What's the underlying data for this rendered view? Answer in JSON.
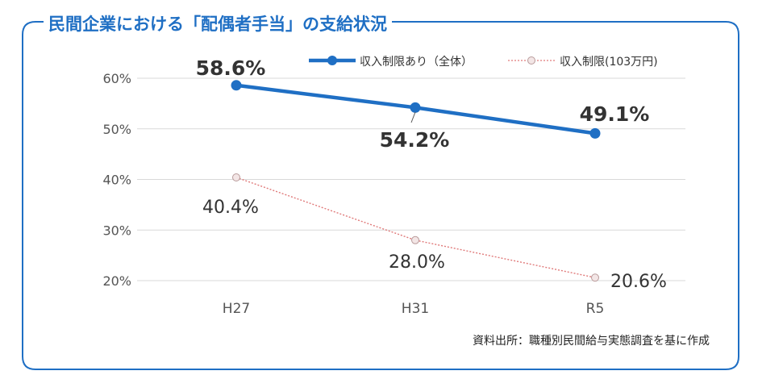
{
  "title": "民間企業における「配偶者手当」の支給状況",
  "source": "資料出所：職種別民間給与実態調査を基に作成",
  "colors": {
    "frame": "#1f6fc4",
    "title": "#1f6fc4",
    "series_all": "#1f6fc4",
    "series_103": "#e07a7a"
  },
  "chart_data": {
    "type": "line",
    "categories": [
      "H27",
      "H31",
      "R5"
    ],
    "ylim": [
      20,
      60
    ],
    "yticks": [
      "20%",
      "30%",
      "40%",
      "50%",
      "60%"
    ],
    "ytick_values": [
      20,
      30,
      40,
      50,
      60
    ],
    "grid": true,
    "legend_position": "top",
    "series": [
      {
        "name": "収入制限あり（全体）",
        "values": [
          58.6,
          54.2,
          49.1
        ],
        "labels": [
          "58.6%",
          "54.2%",
          "49.1%"
        ]
      },
      {
        "name": "収入制限(103万円)",
        "values": [
          40.4,
          28.0,
          20.6
        ],
        "labels": [
          "40.4%",
          "28.0%",
          "20.6%"
        ]
      }
    ]
  }
}
